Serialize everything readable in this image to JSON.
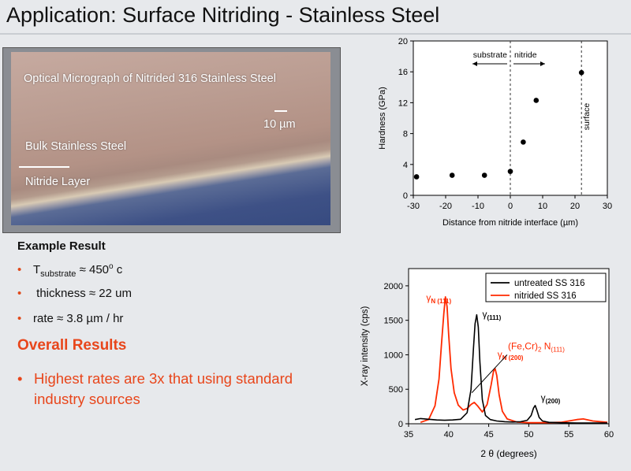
{
  "page": {
    "title": "Application: Surface Nitriding - Stainless Steel"
  },
  "micrograph": {
    "caption": "Optical Micrograph of Nitrided 316 Stainless Steel",
    "scale_label": "10 µm",
    "bulk_label": "Bulk Stainless Steel",
    "layer_label": "Nitride Layer"
  },
  "results": {
    "heading": "Example Result",
    "t_main": "T",
    "t_sub": "substrate",
    "t_rel": " ≈ 450",
    "t_sup": "o",
    "t_unit": " c",
    "thickness": " thickness ≈ 22 um",
    "rate": "rate ≈ 3.8 µm / hr",
    "bullet": "•",
    "overall_heading": "Overall Results",
    "highlight_line1": "Highest rates are 3x that using standard",
    "highlight_line2": "industry sources"
  },
  "colors": {
    "accent": "#e8461b",
    "nitrided": "#ff2a00",
    "untreated": "#000000"
  },
  "chart_data": [
    {
      "type": "scatter",
      "xlabel": "Distance from nitride interface (µm)",
      "ylabel": "Hardness (GPa)",
      "xlim": [
        -30,
        30
      ],
      "ylim": [
        0,
        20
      ],
      "xticks": [
        -30,
        -20,
        -10,
        0,
        10,
        20,
        30
      ],
      "yticks": [
        0,
        4,
        8,
        12,
        16,
        20
      ],
      "points": [
        {
          "x": -29,
          "y": 2.4
        },
        {
          "x": -18,
          "y": 2.6
        },
        {
          "x": -8,
          "y": 2.6
        },
        {
          "x": 0,
          "y": 3.1
        },
        {
          "x": 4,
          "y": 6.9
        },
        {
          "x": 8,
          "y": 12.3
        },
        {
          "x": 22,
          "y": 15.9
        }
      ],
      "vlines": [
        0,
        22
      ],
      "annotations": {
        "substrate": "substrate",
        "nitride": "nitride",
        "surface": "surface"
      },
      "grid": false
    },
    {
      "type": "line",
      "xlabel": "2 θ (degrees)",
      "ylabel": "X-ray intensity (cps)",
      "xlim": [
        35,
        60
      ],
      "ylim": [
        0,
        2250
      ],
      "xticks": [
        35,
        40,
        45,
        50,
        55,
        60
      ],
      "yticks": [
        0,
        500,
        1000,
        1500,
        2000
      ],
      "legend": "top-right",
      "series": [
        {
          "name": "untreated SS 316",
          "color": "#000000",
          "x": [
            35.8,
            36.5,
            37.5,
            38.5,
            39.5,
            40.5,
            41.5,
            42.3,
            42.8,
            43.1,
            43.3,
            43.5,
            43.7,
            43.9,
            44.2,
            44.6,
            45.2,
            46,
            47,
            48,
            49,
            49.8,
            50.3,
            50.6,
            50.8,
            51.0,
            51.3,
            51.7,
            52.5,
            54,
            56,
            58,
            59.8
          ],
          "y": [
            60,
            75,
            65,
            55,
            50,
            55,
            65,
            160,
            500,
            1100,
            1450,
            1580,
            1400,
            900,
            350,
            120,
            60,
            40,
            30,
            25,
            30,
            50,
            120,
            230,
            265,
            200,
            90,
            40,
            20,
            15,
            10,
            10,
            10
          ]
        },
        {
          "name": "nitrided SS 316",
          "color": "#ff2a00",
          "x": [
            36.5,
            37.5,
            38.3,
            38.8,
            39.1,
            39.4,
            39.6,
            39.8,
            40.0,
            40.3,
            40.7,
            41.2,
            41.8,
            42.3,
            42.8,
            43.2,
            43.6,
            44.2,
            44.8,
            45.3,
            45.6,
            45.8,
            46.0,
            46.3,
            46.7,
            47.3,
            48.5,
            50,
            52,
            54,
            56,
            56.8,
            58,
            59.8
          ],
          "y": [
            20,
            60,
            260,
            650,
            1150,
            1600,
            1840,
            1700,
            1300,
            800,
            450,
            270,
            200,
            220,
            280,
            310,
            260,
            170,
            280,
            560,
            760,
            800,
            700,
            420,
            180,
            70,
            25,
            15,
            15,
            20,
            60,
            70,
            40,
            20
          ]
        }
      ],
      "peak_labels": [
        {
          "main": "γ",
          "sub": "N (111)",
          "x": 37.2,
          "y": 1780,
          "color": "#ff2a00"
        },
        {
          "main": "γ",
          "sub": "(111)",
          "x": 44.2,
          "y": 1540,
          "color": "#000000"
        },
        {
          "main": "γ",
          "sub": "N (200)",
          "x": 46.1,
          "y": 960,
          "color": "#ff2a00"
        },
        {
          "main": "γ",
          "sub": "(200)",
          "x": 51.5,
          "y": 330,
          "color": "#000000"
        }
      ],
      "annotation": {
        "main": "(Fe,Cr)",
        "sub1": "2",
        "mid": " N",
        "sub2": "(111)"
      },
      "grid": false
    }
  ]
}
